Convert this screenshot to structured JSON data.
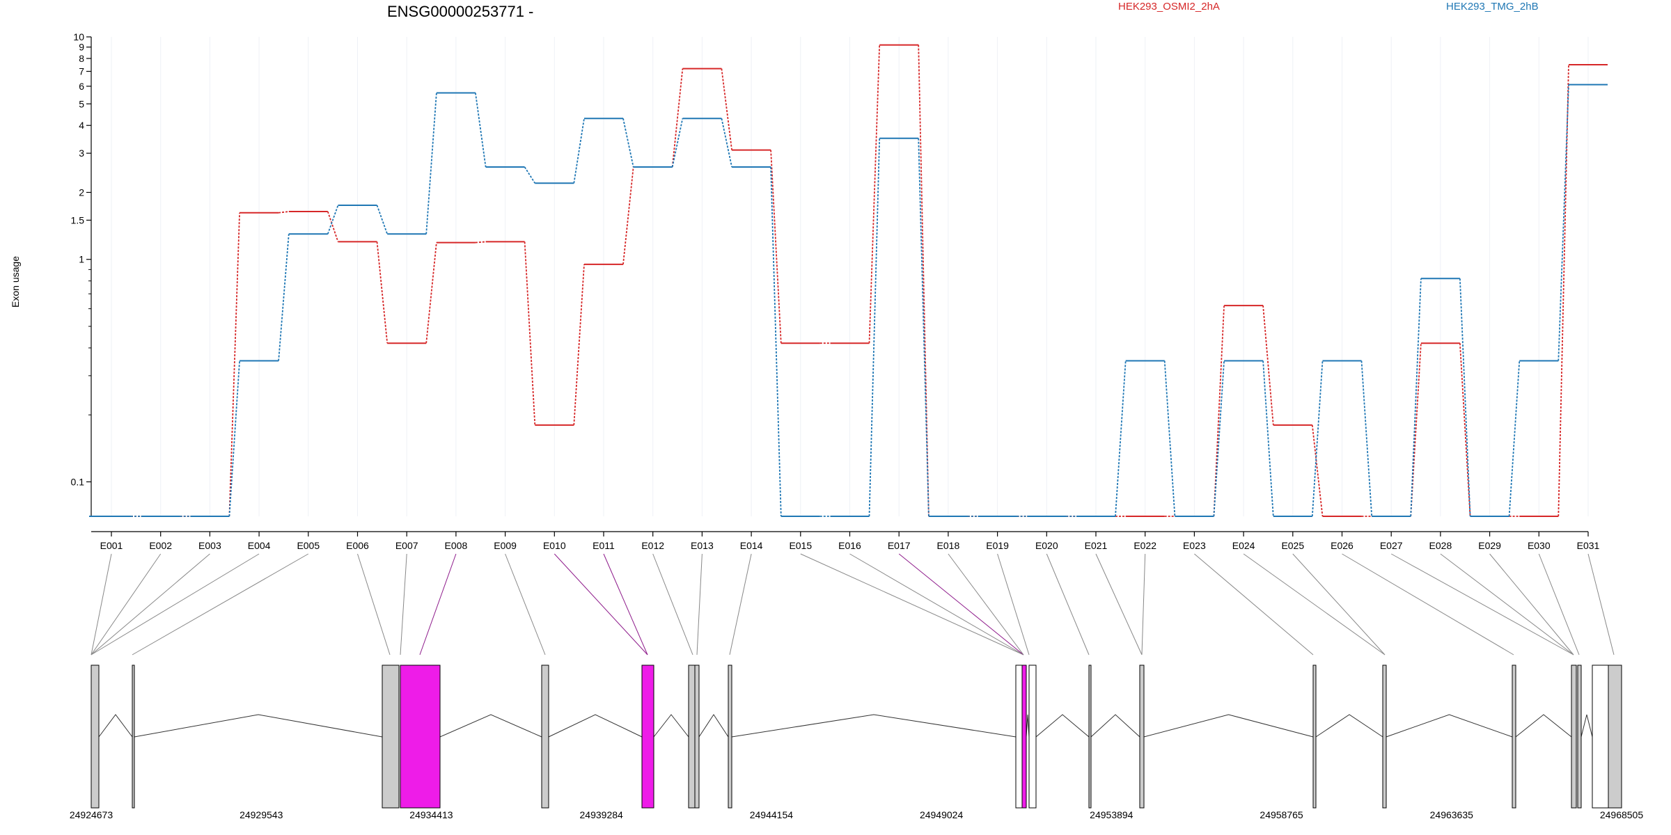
{
  "chart_data": {
    "type": "line",
    "title": "ENSG00000253771 -",
    "ylabel": "Exon usage",
    "yscale": "log",
    "ylim": [
      0.07,
      10
    ],
    "ytick_labels": [
      "0.1",
      "1",
      "1.5",
      "2",
      "3",
      "4",
      "5",
      "6",
      "7",
      "8",
      "9",
      "10"
    ],
    "ytick_values": [
      0.1,
      1,
      1.5,
      2,
      3,
      4,
      5,
      6,
      7,
      8,
      9,
      10
    ],
    "yminor_values": [
      0.2,
      0.3,
      0.4,
      0.5,
      0.6,
      0.7,
      0.8,
      0.9
    ],
    "categories": [
      "E001",
      "E002",
      "E003",
      "E004",
      "E005",
      "E006",
      "E007",
      "E008",
      "E009",
      "E010",
      "E011",
      "E012",
      "E013",
      "E014",
      "E015",
      "E016",
      "E017",
      "E018",
      "E019",
      "E020",
      "E021",
      "E022",
      "E023",
      "E024",
      "E025",
      "E026",
      "E027",
      "E028",
      "E029",
      "E030",
      "E031"
    ],
    "legend_position": "top",
    "series": [
      {
        "name": "HEK293_OSMI2_2hA",
        "color": "#d62728",
        "values": [
          0.07,
          0.07,
          0.07,
          1.62,
          1.64,
          1.2,
          0.42,
          1.19,
          1.2,
          0.18,
          0.95,
          2.6,
          7.2,
          3.1,
          0.42,
          0.42,
          9.2,
          0.07,
          0.07,
          0.07,
          0.07,
          0.07,
          0.07,
          0.62,
          0.18,
          0.07,
          0.07,
          0.42,
          0.07,
          0.07,
          7.5
        ]
      },
      {
        "name": "HEK293_TMG_2hB",
        "color": "#1f77b4",
        "values": [
          0.07,
          0.07,
          0.07,
          0.35,
          1.3,
          1.75,
          1.3,
          5.6,
          2.6,
          2.2,
          4.3,
          2.6,
          4.3,
          2.6,
          0.07,
          0.07,
          3.5,
          0.07,
          0.07,
          0.07,
          0.07,
          0.35,
          0.07,
          0.35,
          0.07,
          0.35,
          0.07,
          0.82,
          0.07,
          0.35,
          6.1
        ]
      }
    ],
    "gene_model": {
      "exon_fill": "#cccccc",
      "highlight_fill": "#ee1ce8",
      "coordinate_labels": [
        "24924673",
        "24929543",
        "24934413",
        "24939284",
        "24944154",
        "24949024",
        "24953894",
        "24958765",
        "24963635",
        "24968505"
      ],
      "coord_start": 24924673,
      "coord_end": 24968505
    }
  }
}
